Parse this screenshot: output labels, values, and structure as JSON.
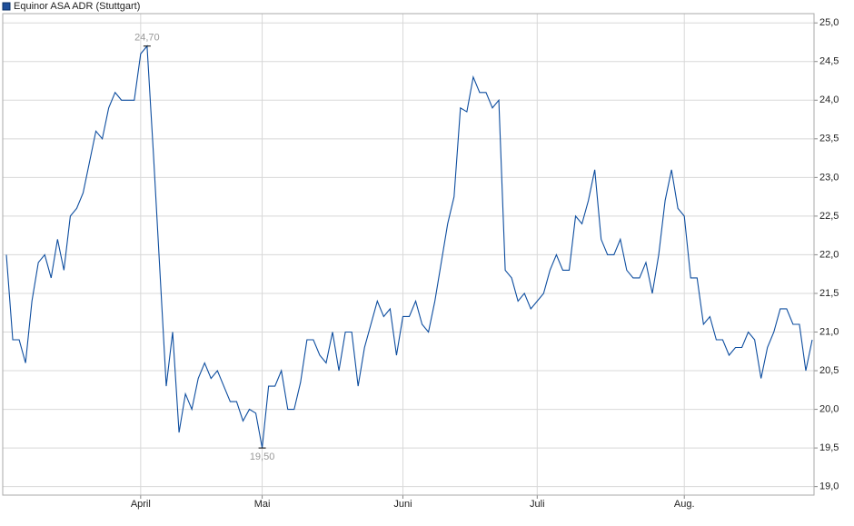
{
  "chart_data": {
    "type": "line",
    "legend_title": "Equinor ASA ADR (Stuttgart)",
    "legend": "top-left",
    "grid": true,
    "categories": [
      null,
      null,
      null,
      null,
      null,
      null,
      null,
      null,
      null,
      null,
      null,
      null,
      null,
      null,
      null,
      null,
      null,
      null,
      null,
      null,
      null,
      "April",
      null,
      null,
      null,
      null,
      null,
      null,
      null,
      null,
      null,
      null,
      null,
      null,
      null,
      null,
      null,
      null,
      null,
      null,
      "Mai",
      null,
      null,
      null,
      null,
      null,
      null,
      null,
      null,
      null,
      null,
      null,
      null,
      null,
      null,
      null,
      null,
      null,
      null,
      null,
      null,
      null,
      "Juni",
      null,
      null,
      null,
      null,
      null,
      null,
      null,
      null,
      null,
      null,
      null,
      null,
      null,
      null,
      null,
      null,
      null,
      null,
      null,
      null,
      "Juli",
      null,
      null,
      null,
      null,
      null,
      null,
      null,
      null,
      null,
      null,
      null,
      null,
      null,
      null,
      null,
      null,
      null,
      null,
      null,
      null,
      null,
      null,
      "Aug.",
      null,
      null,
      null,
      null,
      null,
      null,
      null,
      null,
      null,
      null,
      null,
      null,
      null,
      null,
      null,
      null,
      null,
      null,
      null,
      null
    ],
    "series": [
      {
        "name": "Equinor ASA ADR (Stuttgart)",
        "color": "#0d4d9f",
        "values": [
          22.0,
          20.9,
          20.9,
          20.6,
          21.4,
          21.9,
          22.0,
          21.7,
          22.2,
          21.8,
          22.5,
          22.6,
          22.8,
          23.2,
          23.6,
          23.5,
          23.9,
          24.1,
          24.0,
          24.0,
          24.0,
          24.6,
          24.7,
          23.3,
          21.8,
          20.3,
          21.0,
          19.7,
          20.2,
          20.0,
          20.4,
          20.6,
          20.4,
          20.5,
          20.3,
          20.1,
          20.1,
          19.85,
          20.0,
          19.95,
          19.5,
          20.3,
          20.3,
          20.5,
          20.0,
          20.0,
          20.35,
          20.9,
          20.9,
          20.7,
          20.6,
          21.0,
          20.5,
          21.0,
          21.0,
          20.3,
          20.8,
          21.1,
          21.4,
          21.2,
          21.3,
          20.7,
          21.2,
          21.2,
          21.4,
          21.1,
          21.0,
          21.4,
          21.9,
          22.4,
          22.75,
          23.9,
          23.85,
          24.3,
          24.1,
          24.1,
          23.9,
          24.0,
          21.8,
          21.7,
          21.4,
          21.5,
          21.3,
          21.4,
          21.5,
          21.8,
          22.0,
          21.8,
          21.8,
          22.5,
          22.4,
          22.7,
          23.1,
          22.2,
          22.0,
          22.0,
          22.2,
          21.8,
          21.7,
          21.7,
          21.9,
          21.5,
          22.0,
          22.7,
          23.1,
          22.6,
          22.5,
          21.7,
          21.7,
          21.1,
          21.2,
          20.9,
          20.9,
          20.7,
          20.8,
          20.8,
          21.0,
          20.9,
          20.4,
          20.8,
          21.0,
          21.3,
          21.3,
          21.1,
          21.1,
          20.5,
          20.9
        ],
        "value_labels": [
          null,
          null,
          null,
          null,
          null,
          null,
          null,
          null,
          null,
          null,
          null,
          null,
          null,
          null,
          null,
          null,
          null,
          null,
          null,
          null,
          null,
          null,
          "24,70",
          null,
          null,
          null,
          null,
          null,
          null,
          null,
          null,
          null,
          null,
          null,
          null,
          null,
          null,
          null,
          null,
          null,
          "19,50",
          null,
          null,
          null,
          null,
          null,
          null,
          null,
          null,
          null,
          null,
          null,
          null,
          null,
          null,
          null,
          null,
          null,
          null,
          null,
          null,
          null,
          null,
          null,
          null,
          null,
          null,
          null,
          null,
          null,
          null,
          null,
          null,
          null,
          null,
          null,
          null,
          null,
          null,
          null,
          null,
          null,
          null,
          null,
          null,
          null,
          null,
          null,
          null,
          null,
          null,
          null,
          null,
          null,
          null,
          null,
          null,
          null,
          null,
          null,
          null,
          null,
          null,
          null,
          null,
          null,
          null,
          null,
          null,
          null,
          null,
          null,
          null,
          null,
          null,
          null,
          null,
          null,
          null,
          null,
          null,
          null,
          null,
          null,
          null,
          null,
          null
        ]
      }
    ],
    "ylim": [
      18.89,
      25.12
    ],
    "yticks": [
      {
        "value": 19.0,
        "label": "19,0"
      },
      {
        "value": 19.5,
        "label": "19,5"
      },
      {
        "value": 20.0,
        "label": "20,0"
      },
      {
        "value": 20.5,
        "label": "20,5"
      },
      {
        "value": 21.0,
        "label": "21,0"
      },
      {
        "value": 21.5,
        "label": "21,5"
      },
      {
        "value": 22.0,
        "label": "22,0"
      },
      {
        "value": 22.5,
        "label": "22,5"
      },
      {
        "value": 23.0,
        "label": "23,0"
      },
      {
        "value": 23.5,
        "label": "23,5"
      },
      {
        "value": 24.0,
        "label": "24,0"
      },
      {
        "value": 24.5,
        "label": "24,5"
      },
      {
        "value": 25.0,
        "label": "25,0"
      }
    ]
  }
}
